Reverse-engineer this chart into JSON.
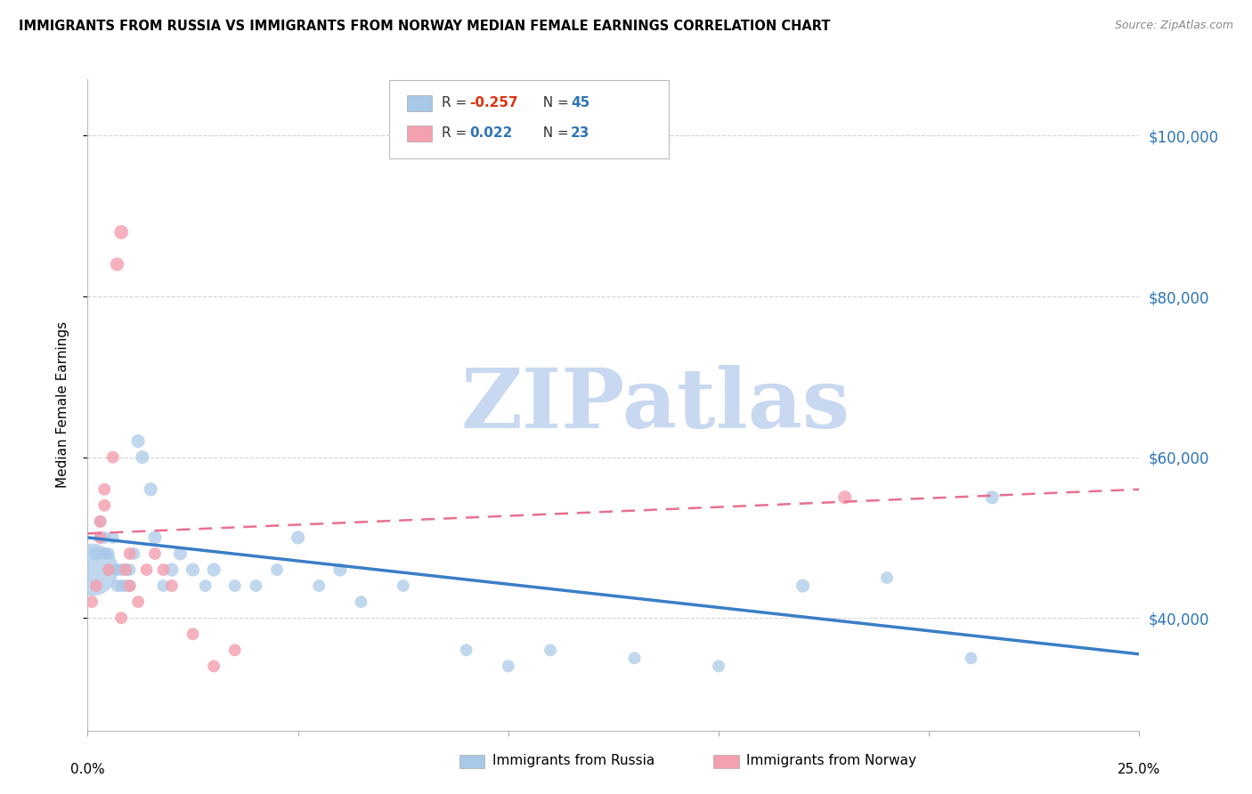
{
  "title": "IMMIGRANTS FROM RUSSIA VS IMMIGRANTS FROM NORWAY MEDIAN FEMALE EARNINGS CORRELATION CHART",
  "source": "Source: ZipAtlas.com",
  "ylabel": "Median Female Earnings",
  "yticks": [
    40000,
    60000,
    80000,
    100000
  ],
  "ytick_labels": [
    "$40,000",
    "$60,000",
    "$80,000",
    "$100,000"
  ],
  "xlim": [
    0.0,
    0.25
  ],
  "ylim": [
    26000,
    107000
  ],
  "russia_color": "#a8c8e8",
  "norway_color": "#f4a0b0",
  "russia_line_color": "#3a7ec6",
  "norway_line_color": "#e87090",
  "russia_line_style": "solid",
  "norway_line_style": "dashed",
  "russia_trend_x0": 0.0,
  "russia_trend_x1": 0.25,
  "russia_trend_y0": 50000,
  "russia_trend_y1": 35500,
  "norway_trend_x0": 0.0,
  "norway_trend_x1": 0.25,
  "norway_trend_y0": 50500,
  "norway_trend_y1": 56000,
  "russia_N": 45,
  "norway_N": 23,
  "russia_R": "-0.257",
  "norway_R": "0.022",
  "russia_x": [
    0.001,
    0.002,
    0.003,
    0.003,
    0.004,
    0.004,
    0.005,
    0.005,
    0.006,
    0.007,
    0.007,
    0.008,
    0.008,
    0.009,
    0.009,
    0.01,
    0.01,
    0.011,
    0.012,
    0.013,
    0.015,
    0.016,
    0.018,
    0.02,
    0.022,
    0.025,
    0.028,
    0.03,
    0.035,
    0.04,
    0.045,
    0.05,
    0.055,
    0.06,
    0.065,
    0.075,
    0.09,
    0.1,
    0.11,
    0.13,
    0.15,
    0.17,
    0.19,
    0.21,
    0.215
  ],
  "russia_y": [
    46000,
    48000,
    50000,
    52000,
    48000,
    50000,
    46000,
    48000,
    50000,
    44000,
    46000,
    44000,
    46000,
    44000,
    46000,
    46000,
    44000,
    48000,
    62000,
    60000,
    56000,
    50000,
    44000,
    46000,
    48000,
    46000,
    44000,
    46000,
    44000,
    44000,
    46000,
    50000,
    44000,
    46000,
    42000,
    44000,
    36000,
    34000,
    36000,
    35000,
    34000,
    44000,
    45000,
    35000,
    55000
  ],
  "russia_sizes": [
    200,
    120,
    100,
    100,
    100,
    100,
    100,
    100,
    100,
    100,
    100,
    100,
    100,
    100,
    100,
    100,
    100,
    100,
    120,
    120,
    120,
    120,
    100,
    120,
    120,
    120,
    100,
    120,
    100,
    100,
    100,
    120,
    100,
    120,
    100,
    100,
    100,
    100,
    100,
    100,
    100,
    120,
    100,
    100,
    120
  ],
  "russia_large_bubble_idx": 0,
  "russia_large_bubble_size": 1800,
  "norway_x": [
    0.001,
    0.002,
    0.003,
    0.003,
    0.004,
    0.004,
    0.005,
    0.006,
    0.007,
    0.008,
    0.009,
    0.01,
    0.012,
    0.014,
    0.016,
    0.018,
    0.02,
    0.025,
    0.03,
    0.035,
    0.18,
    0.01,
    0.008
  ],
  "norway_y": [
    42000,
    44000,
    50000,
    52000,
    54000,
    56000,
    46000,
    60000,
    84000,
    88000,
    46000,
    44000,
    42000,
    46000,
    48000,
    46000,
    44000,
    38000,
    34000,
    36000,
    55000,
    48000,
    40000
  ],
  "norway_sizes": [
    100,
    100,
    100,
    100,
    100,
    100,
    100,
    100,
    120,
    130,
    100,
    100,
    100,
    100,
    100,
    100,
    100,
    100,
    100,
    100,
    120,
    100,
    100
  ],
  "legend_R_label": "R = ",
  "legend_N_label": "N = ",
  "legend_russia_R_val": "-0.257",
  "legend_russia_N_val": "45",
  "legend_norway_R_val": "0.022",
  "legend_norway_N_val": "23",
  "bottom_legend_russia": "Immigrants from Russia",
  "bottom_legend_norway": "Immigrants from Norway",
  "watermark_text": "ZIPatlas",
  "watermark_color": "#c8d8f0",
  "grid_color": "#d0d0d0",
  "grid_linestyle": "--"
}
